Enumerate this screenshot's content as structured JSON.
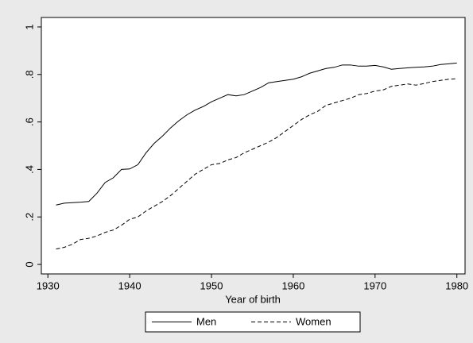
{
  "chart_data": {
    "type": "line",
    "x_label": "Year of birth",
    "x": [
      1931,
      1932,
      1933,
      1934,
      1935,
      1936,
      1937,
      1938,
      1939,
      1940,
      1941,
      1942,
      1943,
      1944,
      1945,
      1946,
      1947,
      1948,
      1949,
      1950,
      1951,
      1952,
      1953,
      1954,
      1955,
      1956,
      1957,
      1958,
      1959,
      1960,
      1961,
      1962,
      1963,
      1964,
      1965,
      1966,
      1967,
      1968,
      1969,
      1970,
      1971,
      1972,
      1973,
      1974,
      1975,
      1976,
      1977,
      1978,
      1979,
      1980
    ],
    "series": [
      {
        "name": "Men",
        "color": "#000000",
        "line_style": "solid",
        "values": [
          0.25,
          0.258,
          0.26,
          0.262,
          0.265,
          0.3,
          0.345,
          0.365,
          0.4,
          0.402,
          0.42,
          0.47,
          0.51,
          0.54,
          0.575,
          0.605,
          0.63,
          0.65,
          0.665,
          0.685,
          0.7,
          0.715,
          0.71,
          0.715,
          0.73,
          0.745,
          0.765,
          0.77,
          0.775,
          0.78,
          0.79,
          0.805,
          0.815,
          0.825,
          0.83,
          0.84,
          0.84,
          0.835,
          0.835,
          0.838,
          0.832,
          0.822,
          0.825,
          0.828,
          0.83,
          0.832,
          0.835,
          0.842,
          0.845,
          0.848
        ]
      },
      {
        "name": "Women",
        "color": "#000000",
        "line_style": "dashed",
        "values": [
          0.065,
          0.072,
          0.085,
          0.105,
          0.11,
          0.12,
          0.135,
          0.145,
          0.165,
          0.19,
          0.2,
          0.225,
          0.245,
          0.265,
          0.29,
          0.32,
          0.35,
          0.38,
          0.4,
          0.42,
          0.425,
          0.44,
          0.45,
          0.47,
          0.485,
          0.5,
          0.515,
          0.535,
          0.56,
          0.585,
          0.61,
          0.63,
          0.645,
          0.67,
          0.68,
          0.69,
          0.7,
          0.715,
          0.72,
          0.73,
          0.735,
          0.75,
          0.755,
          0.76,
          0.755,
          0.762,
          0.77,
          0.775,
          0.78,
          0.782
        ]
      }
    ],
    "xlim": [
      1929.2,
      1981
    ],
    "xticks": [
      1930,
      1940,
      1950,
      1960,
      1970,
      1980
    ],
    "ylim": [
      -0.04,
      1.04
    ],
    "yticks": [
      0,
      {
        "value": 0.2,
        "label": ".2"
      },
      {
        "value": 0.4,
        "label": ".4"
      },
      {
        "value": 0.6,
        "label": ".6"
      },
      {
        "value": 0.8,
        "label": ".8"
      },
      1
    ],
    "grid": false,
    "legend": "bottom"
  }
}
